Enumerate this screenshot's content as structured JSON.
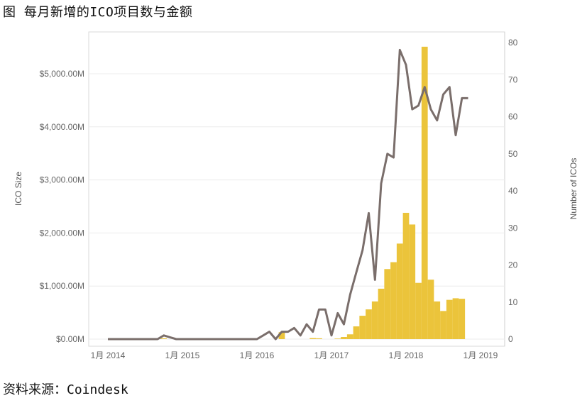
{
  "title": "图 每月新增的ICO项目数与金额",
  "source": "资料来源：Coindesk",
  "chart_data": {
    "type": "bar+line",
    "x_labels": [
      "1月 2014",
      "1月 2015",
      "1月 2016",
      "1月 2017",
      "1月 2018",
      "1月 2019"
    ],
    "left_axis": {
      "title": "ICO Size",
      "ticks": [
        "$0.00M",
        "$1,000.00M",
        "$2,000.00M",
        "$3,000.00M",
        "$4,000.00M",
        "$5,000.00M"
      ],
      "tick_values": [
        0,
        1000,
        2000,
        3000,
        4000,
        5000
      ],
      "ylim": [
        0,
        5800
      ]
    },
    "right_axis": {
      "title": "Number of ICOs",
      "ticks": [
        "0",
        "10",
        "20",
        "30",
        "40",
        "50",
        "60",
        "70",
        "80"
      ],
      "tick_values": [
        0,
        10,
        20,
        30,
        40,
        50,
        60,
        70,
        80
      ],
      "ylim": [
        0,
        80
      ]
    },
    "bar_color": "#EBC43B",
    "line_color": "#7A6E6B",
    "bars": {
      "comment_free_note": "",
      "months": [
        "2014-10",
        "2016-05",
        "2016-10",
        "2016-11",
        "2017-02",
        "2017-03",
        "2017-04",
        "2017-05",
        "2017-06",
        "2017-07",
        "2017-08",
        "2017-09",
        "2017-10",
        "2017-11",
        "2017-12",
        "2018-01",
        "2018-02",
        "2018-03",
        "2018-04",
        "2018-05",
        "2018-06",
        "2018-07",
        "2018-08",
        "2018-09",
        "2018-10",
        "2018-11"
      ],
      "values": [
        15,
        130,
        20,
        15,
        10,
        40,
        90,
        240,
        440,
        560,
        710,
        950,
        1320,
        1450,
        1800,
        2380,
        2160,
        1060,
        5510,
        1120,
        710,
        530,
        740,
        770,
        760,
        0
      ]
    },
    "line": {
      "months": [
        "2014-01",
        "2014-02",
        "2014-03",
        "2014-04",
        "2014-05",
        "2014-06",
        "2014-07",
        "2014-08",
        "2014-09",
        "2014-10",
        "2014-11",
        "2014-12",
        "2015-01",
        "2015-02",
        "2015-03",
        "2015-04",
        "2015-05",
        "2015-06",
        "2015-07",
        "2015-08",
        "2015-09",
        "2015-10",
        "2015-11",
        "2015-12",
        "2016-01",
        "2016-02",
        "2016-03",
        "2016-04",
        "2016-05",
        "2016-06",
        "2016-07",
        "2016-08",
        "2016-09",
        "2016-10",
        "2016-11",
        "2016-12",
        "2017-01",
        "2017-02",
        "2017-03",
        "2017-04",
        "2017-05",
        "2017-06",
        "2017-07",
        "2017-08",
        "2017-09",
        "2017-10",
        "2017-11",
        "2017-12",
        "2018-01",
        "2018-02",
        "2018-03",
        "2018-04",
        "2018-05",
        "2018-06",
        "2018-07",
        "2018-08",
        "2018-09",
        "2018-10",
        "2018-11"
      ],
      "values": [
        0,
        0,
        0,
        0,
        0,
        0,
        0,
        0,
        0,
        1,
        0.5,
        0,
        0,
        0,
        0,
        0,
        0,
        0,
        0,
        0,
        0,
        0,
        0,
        0,
        0,
        1,
        2,
        0,
        2,
        2,
        3,
        1,
        4,
        2,
        8,
        8,
        1,
        7,
        4,
        12,
        18,
        24,
        34,
        16,
        42,
        50,
        49,
        78,
        74,
        62,
        63,
        68,
        62,
        59,
        66,
        68,
        55,
        65,
        65
      ]
    }
  }
}
